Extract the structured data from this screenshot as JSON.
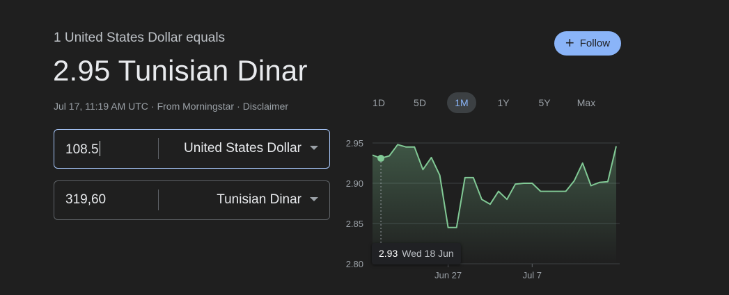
{
  "header": {
    "subtitle": "1 United States Dollar equals",
    "main_value": "2.95 Tunisian Dinar",
    "timestamp": "Jul 17, 11:19 AM UTC",
    "source": "From Morningstar",
    "disclaimer": "Disclaimer",
    "separator": "·"
  },
  "follow": {
    "icon": "plus-icon",
    "label": "Follow",
    "color": "#8ab4f8"
  },
  "converter": {
    "from": {
      "amount": "108.5",
      "currency": "United States Dollar"
    },
    "to": {
      "amount": "319,60",
      "currency": "Tunisian Dinar"
    }
  },
  "range_tabs": {
    "selected": "1M",
    "items": [
      "1D",
      "5D",
      "1M",
      "1Y",
      "5Y",
      "Max"
    ]
  },
  "tooltip": {
    "value": "2.93",
    "date": "Wed 18 Jun"
  },
  "chart_data": {
    "type": "area",
    "title": "",
    "xlabel": "",
    "ylabel": "",
    "ylim": [
      2.8,
      2.95
    ],
    "y_ticks": [
      "2.95",
      "2.90",
      "2.85",
      "2.80"
    ],
    "x_ticks": [
      "Jun 27",
      "Jul 7"
    ],
    "grid": true,
    "line_color": "#81c995",
    "series": [
      {
        "values": [
          2.935,
          2.931,
          2.934,
          2.948,
          2.945,
          2.945,
          2.917,
          2.932,
          2.91,
          2.845,
          2.845,
          2.907,
          2.907,
          2.88,
          2.874,
          2.89,
          2.88,
          2.899,
          2.9,
          2.9,
          2.89,
          2.89,
          2.89,
          2.89,
          2.903,
          2.925,
          2.897,
          2.901,
          2.902,
          2.946
        ]
      }
    ],
    "highlight": {
      "index": 1,
      "value": 2.93,
      "label": "Wed 18 Jun"
    }
  }
}
